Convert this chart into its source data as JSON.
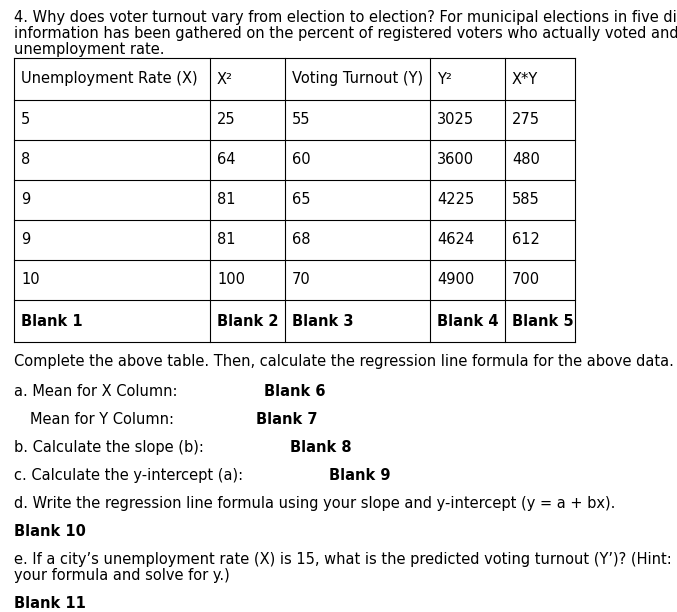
{
  "intro_line1": "4. Why does voter turnout vary from election to election? For municipal elections in five different cities,",
  "intro_line2": "information has been gathered on the percent of registered voters who actually voted and the",
  "intro_line3": "unemployment rate.",
  "table_headers": [
    "Unemployment Rate (X)",
    "X²",
    "Voting Turnout (Y)",
    "Y²",
    "X*Y"
  ],
  "table_rows": [
    [
      "5",
      "25",
      "55",
      "3025",
      "275"
    ],
    [
      "8",
      "64",
      "60",
      "3600",
      "480"
    ],
    [
      "9",
      "81",
      "65",
      "4225",
      "585"
    ],
    [
      "9",
      "81",
      "68",
      "4624",
      "612"
    ],
    [
      "10",
      "100",
      "70",
      "4900",
      "700"
    ]
  ],
  "blank_row": [
    "Blank 1",
    "Blank 2",
    "Blank 3",
    "Blank 4",
    "Blank 5"
  ],
  "below_table": "Complete the above table. Then, calculate the regression line formula for the above data.",
  "background_color": "#ffffff",
  "text_color": "#000000",
  "font_size": 10.5,
  "font_family": "DejaVu Sans"
}
